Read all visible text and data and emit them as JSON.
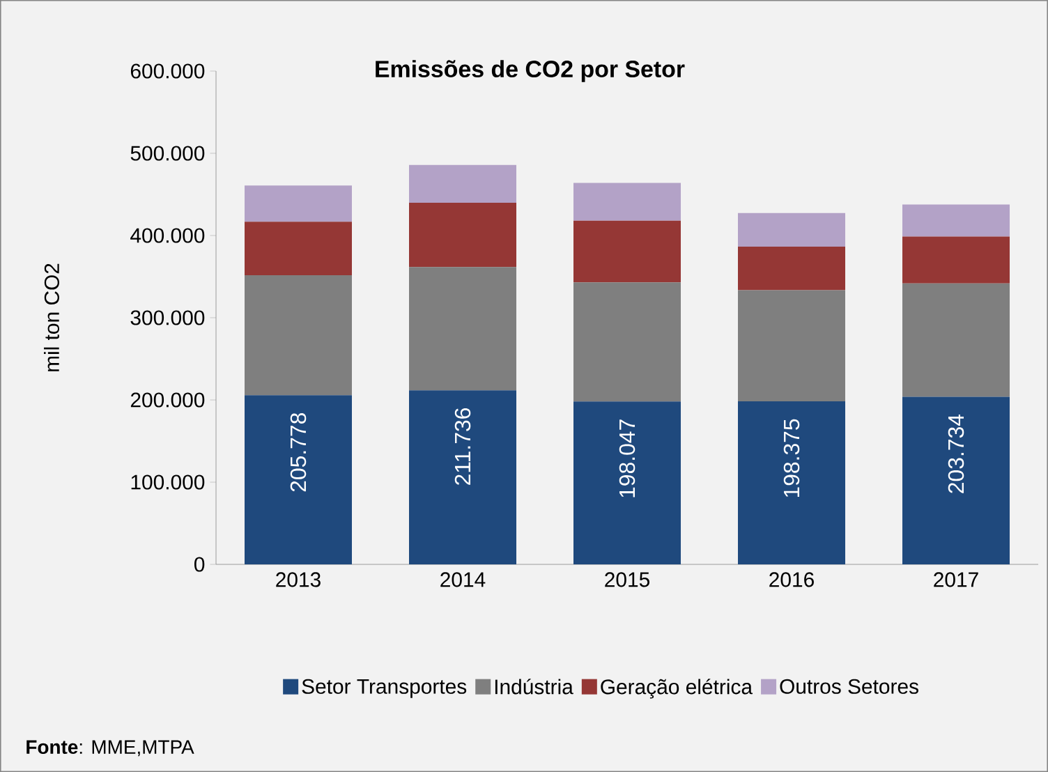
{
  "chart_data": {
    "type": "bar",
    "title": "Emissões de CO2 por Setor",
    "ylabel": "mil ton CO2",
    "categories": [
      "2013",
      "2014",
      "2015",
      "2016",
      "2017"
    ],
    "stacked": true,
    "legend": "bottom",
    "ylim": [
      0,
      600000
    ],
    "yticks": [
      0,
      {
        "value": 100000,
        "label": "100.000"
      },
      {
        "value": 200000,
        "label": "200.000"
      },
      {
        "value": 300000,
        "label": "300.000"
      },
      {
        "value": 400000,
        "label": "400.000"
      },
      {
        "value": 500000,
        "label": "500.000"
      },
      {
        "value": 600000,
        "label": "600.000"
      }
    ],
    "series": [
      {
        "name": "Setor Transportes",
        "color": "#1f497d",
        "values": [
          205778,
          211736,
          198047,
          198375,
          203734
        ],
        "value_labels": [
          "205.778",
          "211.736",
          "198.047",
          "198.375",
          "203.734"
        ]
      },
      {
        "name": "Indústria",
        "color": "#7f7f7f",
        "values": [
          146000,
          150000,
          145000,
          135000,
          138000
        ]
      },
      {
        "name": "Geração elétrica",
        "color": "#953735",
        "values": [
          65000,
          78000,
          75000,
          53000,
          57000
        ]
      },
      {
        "name": "Outros Setores",
        "color": "#b3a2c7",
        "values": [
          44000,
          46000,
          46000,
          41000,
          39000
        ]
      }
    ],
    "annotations": [
      "**Fonte**: MME,MTPA"
    ]
  }
}
